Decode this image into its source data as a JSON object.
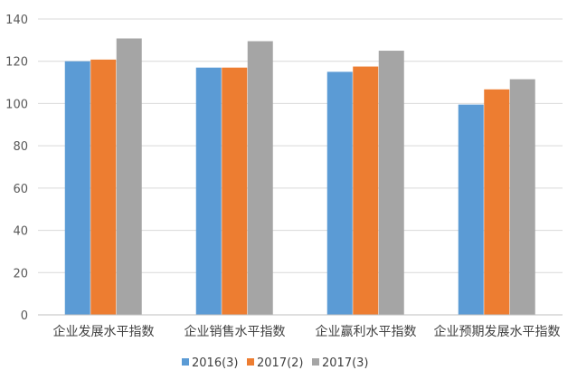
{
  "chart_data": {
    "type": "bar",
    "categories": [
      "企业发展水平指数",
      "企业销售水平指数",
      "企业赢利水平指数",
      "企业预期发展水平指数"
    ],
    "series": [
      {
        "name": "2016(3)",
        "color": "#5b9bd5",
        "values": [
          120,
          117,
          115,
          99.5
        ]
      },
      {
        "name": "2017(2)",
        "color": "#ed7d31",
        "values": [
          120.8,
          117,
          117.5,
          106.7
        ]
      },
      {
        "name": "2017(3)",
        "color": "#a5a5a5",
        "values": [
          130.8,
          129.5,
          125,
          111.5
        ]
      }
    ],
    "ylim": [
      0,
      140
    ],
    "yticks": [
      0,
      20,
      40,
      60,
      80,
      100,
      120,
      140
    ],
    "grid": true,
    "legend_position": "bottom",
    "gridline_color": "#d9d9d9",
    "axis_color": "#bfbfbf"
  }
}
